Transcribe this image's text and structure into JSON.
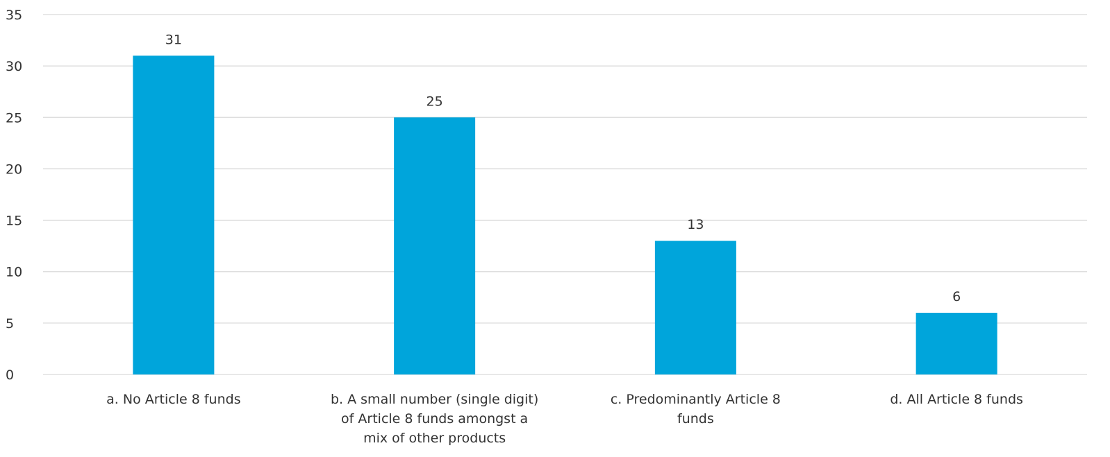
{
  "chart_data": {
    "type": "bar",
    "categories": [
      [
        "a. No Article 8 funds"
      ],
      [
        "b. A small number (single digit)",
        "of Article 8 funds amongst a",
        "mix of other products"
      ],
      [
        "c. Predominantly Article 8",
        "funds"
      ],
      [
        "d. All Article 8 funds"
      ]
    ],
    "values": [
      31,
      25,
      13,
      6
    ],
    "data_labels": [
      "31",
      "25",
      "13",
      "6"
    ],
    "y_ticks": [
      "0",
      "5",
      "10",
      "15",
      "20",
      "25",
      "30",
      "35"
    ],
    "ylim": [
      0,
      35
    ],
    "title": "",
    "xlabel": "",
    "ylabel": "",
    "grid": true,
    "legend": "none",
    "colors": {
      "bar": "#00A5DB",
      "grid": "#D9D9D9",
      "text": "#333333"
    }
  }
}
